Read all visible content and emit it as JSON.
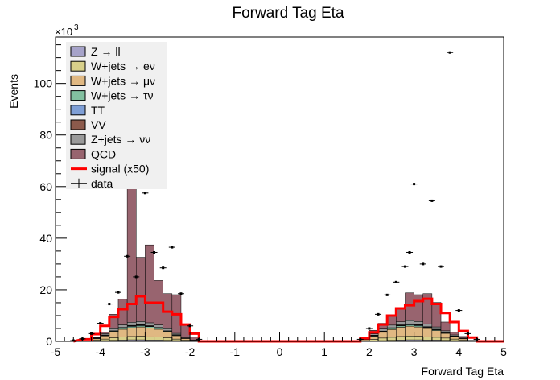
{
  "chart_data": {
    "type": "bar",
    "title": "Forward Tag Eta",
    "xlabel": "Forward Tag Eta",
    "ylabel": "Events",
    "y_multiplier_label": "×10",
    "y_multiplier_exp": "3",
    "xlim": [
      -5,
      5
    ],
    "ylim": [
      0,
      118
    ],
    "x_ticks": [
      "-5",
      "-4",
      "-3",
      "-2",
      "-1",
      "0",
      "1",
      "2",
      "3",
      "4",
      "5"
    ],
    "y_ticks": [
      "0",
      "20",
      "40",
      "60",
      "80",
      "100"
    ],
    "y_tick_values": [
      0,
      20,
      40,
      60,
      80,
      100
    ],
    "bin_edges": [
      -4.4,
      -4.2,
      -4.0,
      -3.8,
      -3.6,
      -3.4,
      -3.2,
      -3.0,
      -2.8,
      -2.6,
      -2.4,
      -2.2,
      -2.0,
      -1.8,
      1.8,
      2.0,
      2.2,
      2.4,
      2.6,
      2.8,
      3.0,
      3.2,
      3.4,
      3.6,
      3.8,
      4.0,
      4.2,
      4.4,
      4.6
    ],
    "stack_order": [
      "Z → ll",
      "W+jets → eν",
      "W+jets → μν",
      "W+jets → τν",
      "TT",
      "VV",
      "Z+jets → νν",
      "QCD"
    ],
    "series": [
      {
        "name": "Z → ll",
        "color": "#a6a3c9",
        "values": [
          0,
          0.2,
          0.3,
          0.4,
          0.5,
          0.6,
          0.6,
          0.5,
          0.5,
          0.4,
          0.3,
          0.2,
          0.1,
          0,
          0.1,
          0.2,
          0.3,
          0.4,
          0.5,
          0.6,
          0.6,
          0.5,
          0.5,
          0.4,
          0.3,
          0.2,
          0.1,
          0
        ]
      },
      {
        "name": "W+jets → eν",
        "color": "#d8d08a",
        "values": [
          0,
          0.3,
          0.6,
          1.0,
          1.2,
          1.3,
          1.4,
          1.3,
          1.2,
          1.0,
          0.6,
          0.3,
          0.1,
          0,
          0.2,
          0.6,
          1.0,
          1.2,
          1.4,
          1.5,
          1.4,
          1.3,
          1.1,
          0.9,
          0.6,
          0.3,
          0.1,
          0
        ]
      },
      {
        "name": "W+jets → μν",
        "color": "#e0b882",
        "values": [
          0,
          0.5,
          1.2,
          2.2,
          3.0,
          3.4,
          3.6,
          3.4,
          3.0,
          2.2,
          1.3,
          0.6,
          0.2,
          0,
          0.4,
          1.2,
          2.2,
          3.0,
          3.6,
          3.8,
          3.6,
          3.2,
          2.6,
          1.8,
          1.0,
          0.5,
          0.1,
          0
        ]
      },
      {
        "name": "W+jets → τν",
        "color": "#82c0a0",
        "values": [
          0,
          0.1,
          0.2,
          0.3,
          0.4,
          0.5,
          0.5,
          0.5,
          0.4,
          0.3,
          0.2,
          0.1,
          0,
          0,
          0.1,
          0.2,
          0.3,
          0.4,
          0.5,
          0.5,
          0.5,
          0.4,
          0.3,
          0.2,
          0.1,
          0.1,
          0,
          0
        ]
      },
      {
        "name": "TT",
        "color": "#7f9fd6",
        "values": [
          0,
          0,
          0.1,
          0.1,
          0.2,
          0.2,
          0.2,
          0.2,
          0.2,
          0.1,
          0.1,
          0,
          0,
          0,
          0,
          0.1,
          0.1,
          0.2,
          0.2,
          0.2,
          0.2,
          0.2,
          0.1,
          0.1,
          0.1,
          0,
          0,
          0
        ]
      },
      {
        "name": "VV",
        "color": "#8c5a4c",
        "values": [
          0,
          0,
          0.1,
          0.1,
          0.1,
          0.2,
          0.2,
          0.2,
          0.1,
          0.1,
          0.1,
          0,
          0,
          0,
          0,
          0.1,
          0.1,
          0.1,
          0.2,
          0.2,
          0.2,
          0.1,
          0.1,
          0.1,
          0,
          0,
          0,
          0
        ]
      },
      {
        "name": "Z+jets → νν",
        "color": "#9a9a9a",
        "values": [
          0,
          0.2,
          0.5,
          0.8,
          1.0,
          1.2,
          1.2,
          1.1,
          1.0,
          0.8,
          0.5,
          0.2,
          0.1,
          0,
          0.2,
          0.5,
          0.8,
          1.0,
          1.2,
          1.3,
          1.2,
          1.1,
          0.9,
          0.6,
          0.4,
          0.2,
          0.1,
          0
        ]
      },
      {
        "name": "QCD",
        "color": "#98646f",
        "values": [
          0,
          0.2,
          0.5,
          5.6,
          9.9,
          54.4,
          24.9,
          30.2,
          17.2,
          13.6,
          15.0,
          5.3,
          1.2,
          0,
          0.3,
          1.4,
          2.2,
          3.7,
          5.4,
          10.7,
          10.4,
          11.7,
          9.5,
          3.4,
          1.0,
          0.6,
          0,
          0
        ]
      }
    ],
    "signal": {
      "name": "signal (x50)",
      "color": "#ff0000",
      "values": [
        0.8,
        2.8,
        6.0,
        9.5,
        12.5,
        14.5,
        17.5,
        15.0,
        15.0,
        11.5,
        10.5,
        6.5,
        3.0,
        0,
        1.2,
        3.5,
        6.5,
        10.0,
        12.8,
        14.0,
        15.6,
        16.5,
        14.5,
        11.0,
        7.5,
        4.0,
        1.5,
        0
      ]
    },
    "data_points": {
      "name": "data",
      "color": "#000000",
      "points": [
        {
          "x": -4.6,
          "y": 0.3
        },
        {
          "x": -4.4,
          "y": 1.0
        },
        {
          "x": -4.2,
          "y": 3.0
        },
        {
          "x": -4.0,
          "y": 7.0
        },
        {
          "x": -3.8,
          "y": 14.5
        },
        {
          "x": -3.6,
          "y": 19.0
        },
        {
          "x": -3.4,
          "y": 33.0
        },
        {
          "x": -3.2,
          "y": 25.0
        },
        {
          "x": -3.0,
          "y": 57.5
        },
        {
          "x": -2.8,
          "y": 34.5
        },
        {
          "x": -2.6,
          "y": 28.5
        },
        {
          "x": -2.4,
          "y": 36.5
        },
        {
          "x": -2.2,
          "y": 18.5
        },
        {
          "x": -2.0,
          "y": 6.0
        },
        {
          "x": -1.8,
          "y": 0.8
        },
        {
          "x": 1.8,
          "y": 0.8
        },
        {
          "x": 2.0,
          "y": 5.0
        },
        {
          "x": 2.2,
          "y": 10.5
        },
        {
          "x": 2.4,
          "y": 18.0
        },
        {
          "x": 2.6,
          "y": 23.0
        },
        {
          "x": 2.8,
          "y": 29.0
        },
        {
          "x": 2.9,
          "y": 34.5
        },
        {
          "x": 3.0,
          "y": 61.0
        },
        {
          "x": 3.2,
          "y": 30.0
        },
        {
          "x": 3.4,
          "y": 54.5
        },
        {
          "x": 3.6,
          "y": 29.0
        },
        {
          "x": 3.8,
          "y": 112.0
        },
        {
          "x": 4.0,
          "y": 12.0
        },
        {
          "x": 4.2,
          "y": 3.0
        },
        {
          "x": 4.4,
          "y": 0.8
        }
      ]
    },
    "legend": {
      "placement": "top-left",
      "entries": [
        {
          "label": "Z → ll",
          "kind": "box",
          "color": "#a6a3c9"
        },
        {
          "label": "W+jets → eν",
          "kind": "box",
          "color": "#d8d08a"
        },
        {
          "label": "W+jets → μν",
          "kind": "box",
          "color": "#e0b882"
        },
        {
          "label": "W+jets → τν",
          "kind": "box",
          "color": "#82c0a0"
        },
        {
          "label": "TT",
          "kind": "box",
          "color": "#7f9fd6"
        },
        {
          "label": "VV",
          "kind": "box",
          "color": "#8c5a4c"
        },
        {
          "label": "Z+jets → νν",
          "kind": "box",
          "color": "#9a9a9a"
        },
        {
          "label": "QCD",
          "kind": "box",
          "color": "#98646f"
        },
        {
          "label": "signal (x50)",
          "kind": "line",
          "color": "#ff0000"
        },
        {
          "label": "data",
          "kind": "marker",
          "color": "#000000"
        }
      ]
    }
  }
}
